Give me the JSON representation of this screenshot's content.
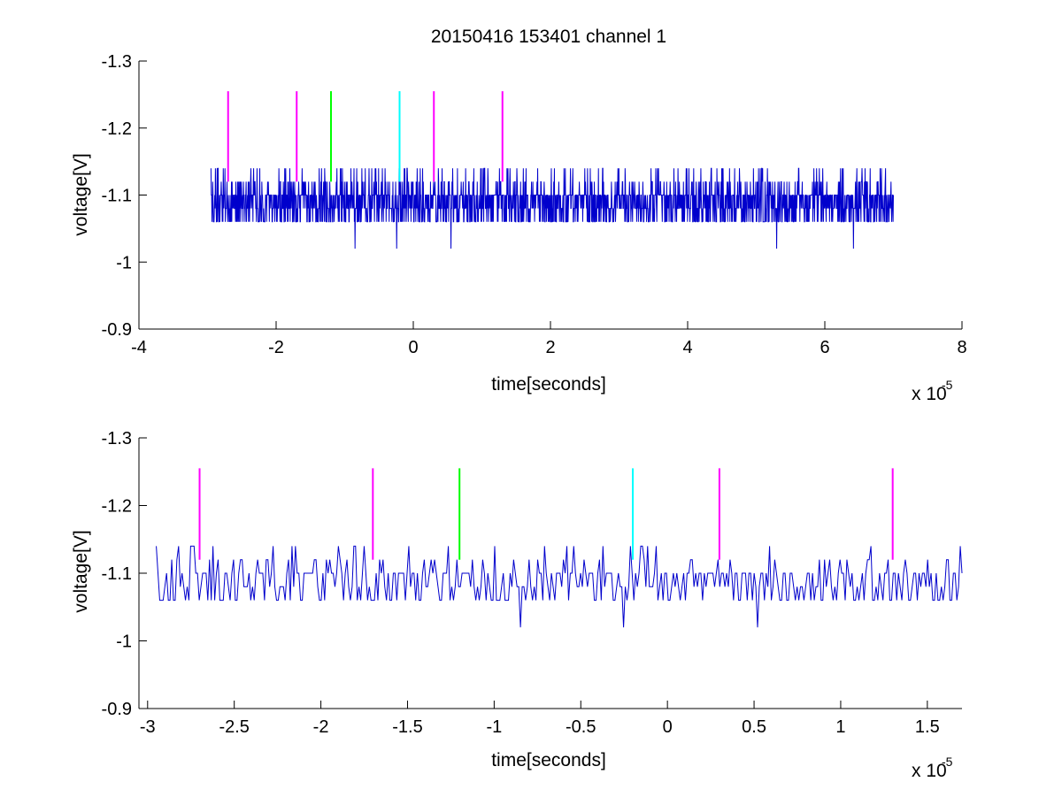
{
  "figure": {
    "title": "20150416 153401 channel 1"
  },
  "chart_data": [
    {
      "type": "line",
      "title": "20150416 153401 channel 1",
      "xlabel": "time[seconds]",
      "ylabel": "voltage[V]",
      "x_exponent_label": "x 10",
      "x_exponent": "-5",
      "xlim": [
        -4e-05,
        8e-05
      ],
      "ylim": [
        -1.3,
        -0.9
      ],
      "ydir": "reverse",
      "xticks": [
        -4e-05,
        -2e-05,
        0,
        2e-05,
        4e-05,
        6e-05,
        8e-05
      ],
      "xtick_labels": [
        "-4",
        "-2",
        "0",
        "2",
        "4",
        "6",
        "8"
      ],
      "yticks": [
        -0.9,
        -1.0,
        -1.1,
        -1.2,
        -1.3
      ],
      "ytick_labels": [
        "-0.9",
        "-1",
        "-1.1",
        "-1.2",
        "-1.3"
      ],
      "grid": false,
      "signal": {
        "color": "#0000cc",
        "x_start": -2.95e-05,
        "x_end": 7e-05,
        "samples": 2000,
        "levels": [
          -1.14,
          -1.12,
          -1.1,
          -1.08,
          -1.06,
          -1.02
        ],
        "spikes_up": [
          {
            "x": -8.5e-06,
            "y": -1.02
          },
          {
            "x": -2.4e-06,
            "y": -1.02
          },
          {
            "x": 5.5e-06,
            "y": -1.02
          },
          {
            "x": 5.3e-05,
            "y": -1.02
          },
          {
            "x": 6.42e-05,
            "y": -1.02
          }
        ]
      },
      "markers": [
        {
          "x": -2.7e-05,
          "color": "#ff00ff",
          "y_from": -1.12,
          "y_to": -1.255
        },
        {
          "x": -1.7e-05,
          "color": "#ff00ff",
          "y_from": -1.12,
          "y_to": -1.255
        },
        {
          "x": -1.2e-05,
          "color": "#00ff00",
          "y_from": -1.12,
          "y_to": -1.255
        },
        {
          "x": -2e-06,
          "color": "#00ffff",
          "y_from": -1.12,
          "y_to": -1.255
        },
        {
          "x": 3e-06,
          "color": "#ff00ff",
          "y_from": -1.12,
          "y_to": -1.255
        },
        {
          "x": 1.3e-05,
          "color": "#ff00ff",
          "y_from": -1.12,
          "y_to": -1.255
        }
      ]
    },
    {
      "type": "line",
      "title": "",
      "xlabel": "time[seconds]",
      "ylabel": "voltage[V]",
      "x_exponent_label": "x 10",
      "x_exponent": "-5",
      "xlim": [
        -3.05e-05,
        1.7e-05
      ],
      "ylim": [
        -1.3,
        -0.9
      ],
      "ydir": "reverse",
      "xticks": [
        -3e-05,
        -2.5e-05,
        -2e-05,
        -1.5e-05,
        -1e-05,
        -5e-06,
        0,
        5e-06,
        1e-05,
        1.5e-05
      ],
      "xtick_labels": [
        "-3",
        "-2.5",
        "-2",
        "-1.5",
        "-1",
        "-0.5",
        "0",
        "0.5",
        "1",
        "1.5"
      ],
      "yticks": [
        -0.9,
        -1.0,
        -1.1,
        -1.2,
        -1.3
      ],
      "ytick_labels": [
        "-0.9",
        "-1",
        "-1.1",
        "-1.2",
        "-1.3"
      ],
      "grid": false,
      "signal": {
        "color": "#0000cc",
        "x_start": -2.95e-05,
        "x_end": 1.7e-05,
        "samples": 470,
        "levels": [
          -1.14,
          -1.12,
          -1.1,
          -1.08,
          -1.06,
          -1.02
        ],
        "spikes_up": [
          {
            "x": -8.5e-06,
            "y": -1.02
          },
          {
            "x": -2.5e-06,
            "y": -1.02
          },
          {
            "x": 5.2e-06,
            "y": -1.02
          }
        ]
      },
      "markers": [
        {
          "x": -2.7e-05,
          "color": "#ff00ff",
          "y_from": -1.12,
          "y_to": -1.255
        },
        {
          "x": -1.7e-05,
          "color": "#ff00ff",
          "y_from": -1.12,
          "y_to": -1.255
        },
        {
          "x": -1.2e-05,
          "color": "#00ff00",
          "y_from": -1.12,
          "y_to": -1.255
        },
        {
          "x": -2e-06,
          "color": "#00ffff",
          "y_from": -1.12,
          "y_to": -1.255
        },
        {
          "x": 3e-06,
          "color": "#ff00ff",
          "y_from": -1.12,
          "y_to": -1.255
        },
        {
          "x": 1.3e-05,
          "color": "#ff00ff",
          "y_from": -1.12,
          "y_to": -1.255
        }
      ]
    }
  ]
}
